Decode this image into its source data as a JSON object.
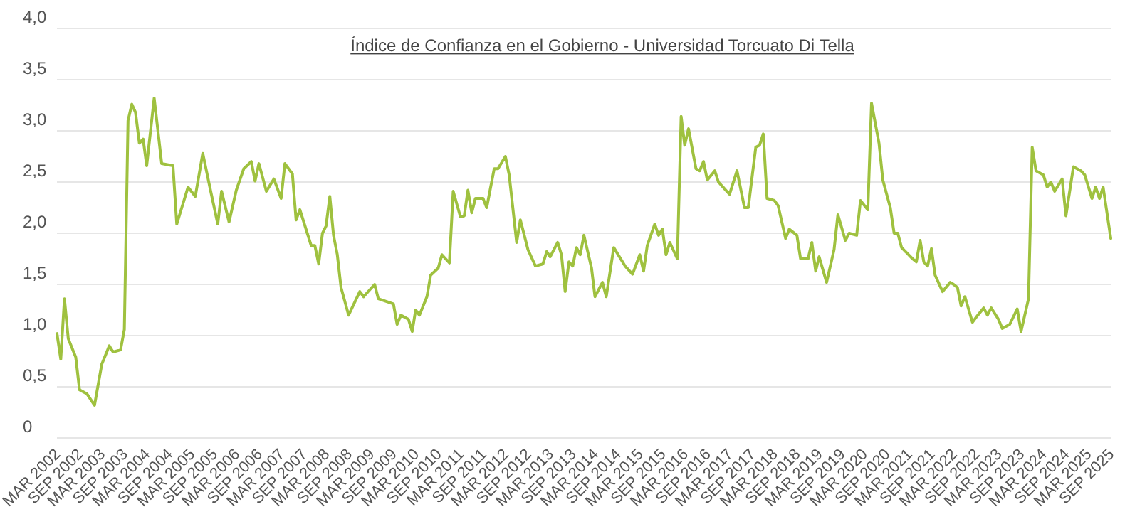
{
  "chart_data": {
    "type": "line",
    "title": "Índice de Confianza en el Gobierno - Universidad Torcuato Di Tella",
    "x": [
      "2002-03",
      "2002-04",
      "2002-05",
      "2002-06",
      "2002-08",
      "2002-09",
      "2002-11",
      "2003-01",
      "2003-03",
      "2003-05",
      "2003-06",
      "2003-08",
      "2003-09",
      "2003-10",
      "2003-11",
      "2003-12",
      "2004-01",
      "2004-02",
      "2004-03",
      "2004-05",
      "2004-07",
      "2004-10",
      "2004-11",
      "2005-02",
      "2005-04",
      "2005-06",
      "2005-08",
      "2005-10",
      "2005-11",
      "2006-01",
      "2006-03",
      "2006-05",
      "2006-07",
      "2006-08",
      "2006-09",
      "2006-11",
      "2007-01",
      "2007-03",
      "2007-04",
      "2007-06",
      "2007-07",
      "2007-08",
      "2007-11",
      "2007-12",
      "2008-01",
      "2008-02",
      "2008-03",
      "2008-04",
      "2008-05",
      "2008-06",
      "2008-07",
      "2008-09",
      "2008-12",
      "2009-01",
      "2009-04",
      "2009-05",
      "2009-09",
      "2009-10",
      "2009-11",
      "2010-01",
      "2010-02",
      "2010-03",
      "2010-04",
      "2010-06",
      "2010-07",
      "2010-09",
      "2010-10",
      "2010-12",
      "2011-01",
      "2011-03",
      "2011-04",
      "2011-05",
      "2011-06",
      "2011-07",
      "2011-09",
      "2011-10",
      "2011-12",
      "2012-01",
      "2012-03",
      "2012-04",
      "2012-06",
      "2012-07",
      "2012-09",
      "2012-11",
      "2013-01",
      "2013-02",
      "2013-03",
      "2013-05",
      "2013-06",
      "2013-07",
      "2013-08",
      "2013-09",
      "2013-10",
      "2013-11",
      "2013-12",
      "2014-02",
      "2014-03",
      "2014-05",
      "2014-06",
      "2014-08",
      "2014-11",
      "2015-01",
      "2015-03",
      "2015-04",
      "2015-05",
      "2015-07",
      "2015-08",
      "2015-09",
      "2015-10",
      "2015-11",
      "2016-01",
      "2016-02",
      "2016-03",
      "2016-04",
      "2016-06",
      "2016-07",
      "2016-08",
      "2016-09",
      "2016-11",
      "2016-12",
      "2017-03",
      "2017-05",
      "2017-07",
      "2017-08",
      "2017-10",
      "2017-11",
      "2017-12",
      "2018-01",
      "2018-03",
      "2018-04",
      "2018-06",
      "2018-07",
      "2018-09",
      "2018-10",
      "2018-12",
      "2019-01",
      "2019-02",
      "2019-03",
      "2019-05",
      "2019-07",
      "2019-08",
      "2019-10",
      "2019-11",
      "2020-01",
      "2020-02",
      "2020-04",
      "2020-05",
      "2020-07",
      "2020-08",
      "2020-10",
      "2020-11",
      "2020-12",
      "2021-01",
      "2021-04",
      "2021-05",
      "2021-06",
      "2021-07",
      "2021-08",
      "2021-09",
      "2021-10",
      "2021-12",
      "2022-02",
      "2022-03",
      "2022-04",
      "2022-05",
      "2022-06",
      "2022-08",
      "2022-09",
      "2022-11",
      "2022-12",
      "2023-01",
      "2023-03",
      "2023-04",
      "2023-06",
      "2023-08",
      "2023-09",
      "2023-11",
      "2023-12",
      "2024-01",
      "2024-03",
      "2024-04",
      "2024-05",
      "2024-06",
      "2024-08",
      "2024-09",
      "2024-11",
      "2025-01",
      "2025-02",
      "2025-04",
      "2025-05",
      "2025-06",
      "2025-07",
      "2025-08",
      "2025-09"
    ],
    "series": [
      {
        "color": "#9fc13f",
        "values": [
          1.02,
          0.77,
          1.36,
          0.97,
          0.79,
          0.47,
          0.43,
          0.32,
          0.72,
          0.9,
          0.84,
          0.86,
          1.06,
          3.1,
          3.26,
          3.18,
          2.88,
          2.92,
          2.66,
          3.32,
          2.68,
          2.66,
          2.09,
          2.45,
          2.36,
          2.78,
          2.43,
          2.09,
          2.41,
          2.11,
          2.42,
          2.63,
          2.7,
          2.51,
          2.68,
          2.41,
          2.53,
          2.34,
          2.68,
          2.58,
          2.13,
          2.23,
          1.88,
          1.88,
          1.7,
          2.0,
          2.07,
          2.36,
          1.98,
          1.79,
          1.47,
          1.2,
          1.43,
          1.38,
          1.5,
          1.36,
          1.31,
          1.11,
          1.2,
          1.16,
          1.04,
          1.25,
          1.2,
          1.38,
          1.59,
          1.66,
          1.79,
          1.71,
          2.41,
          2.16,
          2.17,
          2.42,
          2.2,
          2.34,
          2.34,
          2.25,
          2.63,
          2.63,
          2.75,
          2.57,
          1.91,
          2.13,
          1.84,
          1.68,
          1.7,
          1.82,
          1.77,
          1.91,
          1.79,
          1.43,
          1.72,
          1.68,
          1.86,
          1.79,
          1.98,
          1.66,
          1.38,
          1.52,
          1.38,
          1.86,
          1.68,
          1.6,
          1.79,
          1.63,
          1.88,
          2.09,
          1.98,
          2.04,
          1.79,
          1.91,
          1.75,
          3.14,
          2.86,
          3.02,
          2.63,
          2.61,
          2.7,
          2.52,
          2.61,
          2.5,
          2.38,
          2.61,
          2.25,
          2.25,
          2.84,
          2.86,
          2.97,
          2.34,
          2.32,
          2.27,
          1.95,
          2.04,
          1.98,
          1.75,
          1.75,
          1.91,
          1.63,
          1.77,
          1.52,
          1.84,
          2.18,
          1.93,
          2.0,
          1.98,
          2.32,
          2.23,
          3.27,
          2.88,
          2.52,
          2.25,
          2.0,
          2.0,
          1.86,
          1.75,
          1.72,
          1.93,
          1.72,
          1.68,
          1.85,
          1.59,
          1.43,
          1.52,
          1.5,
          1.47,
          1.29,
          1.38,
          1.13,
          1.18,
          1.27,
          1.2,
          1.27,
          1.16,
          1.07,
          1.11,
          1.26,
          1.04,
          1.36,
          2.84,
          2.61,
          2.57,
          2.45,
          2.5,
          2.41,
          2.53,
          2.17,
          2.65,
          2.61,
          2.57,
          2.34,
          2.45,
          2.34,
          2.45,
          2.2,
          1.95
        ]
      }
    ],
    "ylim": [
      0,
      4
    ],
    "yticks": [
      {
        "value": 0,
        "label": "0"
      },
      {
        "value": 0.5,
        "label": "0,5"
      },
      {
        "value": 1,
        "label": "1,0"
      },
      {
        "value": 1.5,
        "label": "1,5"
      },
      {
        "value": 2,
        "label": "2,0"
      },
      {
        "value": 2.5,
        "label": "2,5"
      },
      {
        "value": 3,
        "label": "3,0"
      },
      {
        "value": 3.5,
        "label": "3,5"
      },
      {
        "value": 4,
        "label": "4,0"
      }
    ],
    "xlim": [
      "2002-03",
      "2025-09"
    ],
    "xticks": [
      {
        "value": "2002-03",
        "label": "MAR 2002"
      },
      {
        "value": "2002-09",
        "label": "SEP 2002"
      },
      {
        "value": "2003-03",
        "label": "MAR 2003"
      },
      {
        "value": "2003-09",
        "label": "SEP 2003"
      },
      {
        "value": "2004-03",
        "label": "MAR 2004"
      },
      {
        "value": "2004-09",
        "label": "SEP 2004"
      },
      {
        "value": "2005-03",
        "label": "MAR 2005"
      },
      {
        "value": "2005-09",
        "label": "SEP 2005"
      },
      {
        "value": "2006-03",
        "label": "MAR 2006"
      },
      {
        "value": "2006-09",
        "label": "SEP 2006"
      },
      {
        "value": "2007-03",
        "label": "MAR 2007"
      },
      {
        "value": "2007-09",
        "label": "SEP 2007"
      },
      {
        "value": "2008-03",
        "label": "MAR 2008"
      },
      {
        "value": "2008-09",
        "label": "SEP 2008"
      },
      {
        "value": "2009-03",
        "label": "MAR 2009"
      },
      {
        "value": "2009-09",
        "label": "SEP 2009"
      },
      {
        "value": "2010-03",
        "label": "MAR 2010"
      },
      {
        "value": "2010-09",
        "label": "SEP 2010"
      },
      {
        "value": "2011-03",
        "label": "MAR 2011"
      },
      {
        "value": "2011-09",
        "label": "SEP 2011"
      },
      {
        "value": "2012-03",
        "label": "MAR 2012"
      },
      {
        "value": "2012-09",
        "label": "SEP 2012"
      },
      {
        "value": "2013-03",
        "label": "MAR 2013"
      },
      {
        "value": "2013-09",
        "label": "SEP 2013"
      },
      {
        "value": "2014-03",
        "label": "MAR 2014"
      },
      {
        "value": "2014-09",
        "label": "SEP 2014"
      },
      {
        "value": "2015-03",
        "label": "MAR 2015"
      },
      {
        "value": "2015-09",
        "label": "SEP 2015"
      },
      {
        "value": "2016-03",
        "label": "MAR 2016"
      },
      {
        "value": "2016-09",
        "label": "SEP 2016"
      },
      {
        "value": "2017-03",
        "label": "MAR 2017"
      },
      {
        "value": "2017-09",
        "label": "SEP 2017"
      },
      {
        "value": "2018-03",
        "label": "MAR 2018"
      },
      {
        "value": "2018-09",
        "label": "SEP 2018"
      },
      {
        "value": "2019-03",
        "label": "MAR 2019"
      },
      {
        "value": "2019-09",
        "label": "SEP 2019"
      },
      {
        "value": "2020-03",
        "label": "MAR 2020"
      },
      {
        "value": "2020-09",
        "label": "SEP 2020"
      },
      {
        "value": "2021-03",
        "label": "MAR 2021"
      },
      {
        "value": "2021-09",
        "label": "SEP 2021"
      },
      {
        "value": "2022-03",
        "label": "MAR 2022"
      },
      {
        "value": "2022-09",
        "label": "SEP 2022"
      },
      {
        "value": "2023-03",
        "label": "MAR 2023"
      },
      {
        "value": "2023-09",
        "label": "SEP 2023"
      },
      {
        "value": "2024-03",
        "label": "MAR 2024"
      },
      {
        "value": "2024-09",
        "label": "SEP 2024"
      },
      {
        "value": "2025-03",
        "label": "MAR 2025"
      },
      {
        "value": "2025-09",
        "label": "SEP 2025"
      }
    ],
    "grid": "y",
    "marker": "none",
    "line_style": "solid"
  }
}
